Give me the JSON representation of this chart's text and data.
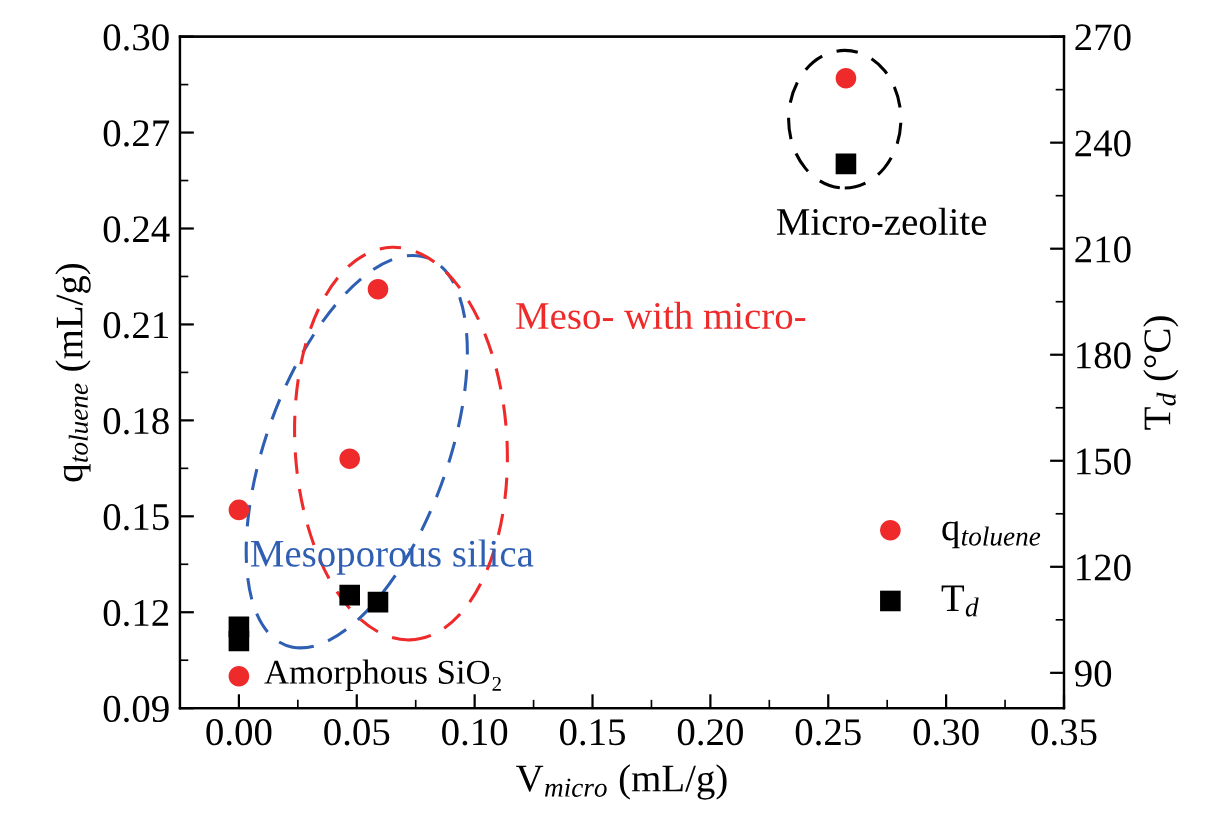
{
  "chart_data": {
    "type": "scatter",
    "xlabel": "V$_{micro}$ (mL/g)",
    "ylabel": "q$_{toluene}$ (mL/g)",
    "y2label": "T$_{d}$ (°C)",
    "series": [
      {
        "name": "q$_{toluene}$",
        "color": "#ee2a2a",
        "marker": "circle",
        "x": [
          0.0,
          0.0,
          0.047,
          0.059,
          0.2575
        ],
        "values": [
          0.1,
          0.152,
          0.168,
          0.221,
          0.287
        ]
      },
      {
        "name": "T$_{d}$",
        "color": "#000000",
        "marker": "square",
        "axis": "y2",
        "x": [
          0.0,
          0.0,
          0.047,
          0.059,
          0.2575
        ],
        "values": [
          103,
          99,
          112,
          110,
          234
        ]
      }
    ],
    "xlim": [
      -0.025,
      0.35
    ],
    "xticks": [
      {
        "value": 0,
        "label": "0.00"
      },
      {
        "value": 0.05,
        "label": "0.05"
      },
      {
        "value": 0.1,
        "label": "0.10"
      },
      {
        "value": 0.15,
        "label": "0.15"
      },
      {
        "value": 0.2,
        "label": "0.20"
      },
      {
        "value": 0.25,
        "label": "0.25"
      },
      {
        "value": 0.3,
        "label": "0.30"
      },
      {
        "value": 0.35,
        "label": "0.35"
      }
    ],
    "ylim": [
      0.09,
      0.3
    ],
    "yticks": [
      0.09,
      0.12,
      0.15,
      0.18,
      0.21,
      0.24,
      0.27,
      {
        "value": 0.3,
        "label": "0.30"
      }
    ],
    "y2lim": [
      80,
      270
    ],
    "y2ticks": [
      90,
      120,
      150,
      180,
      210,
      240,
      270
    ],
    "annotations": [
      "Amorphous SiO₂",
      "Mesoporous silica",
      "Meso- with micro-",
      "Micro-zeolite"
    ],
    "legend": "bottom right",
    "grid": false
  }
}
